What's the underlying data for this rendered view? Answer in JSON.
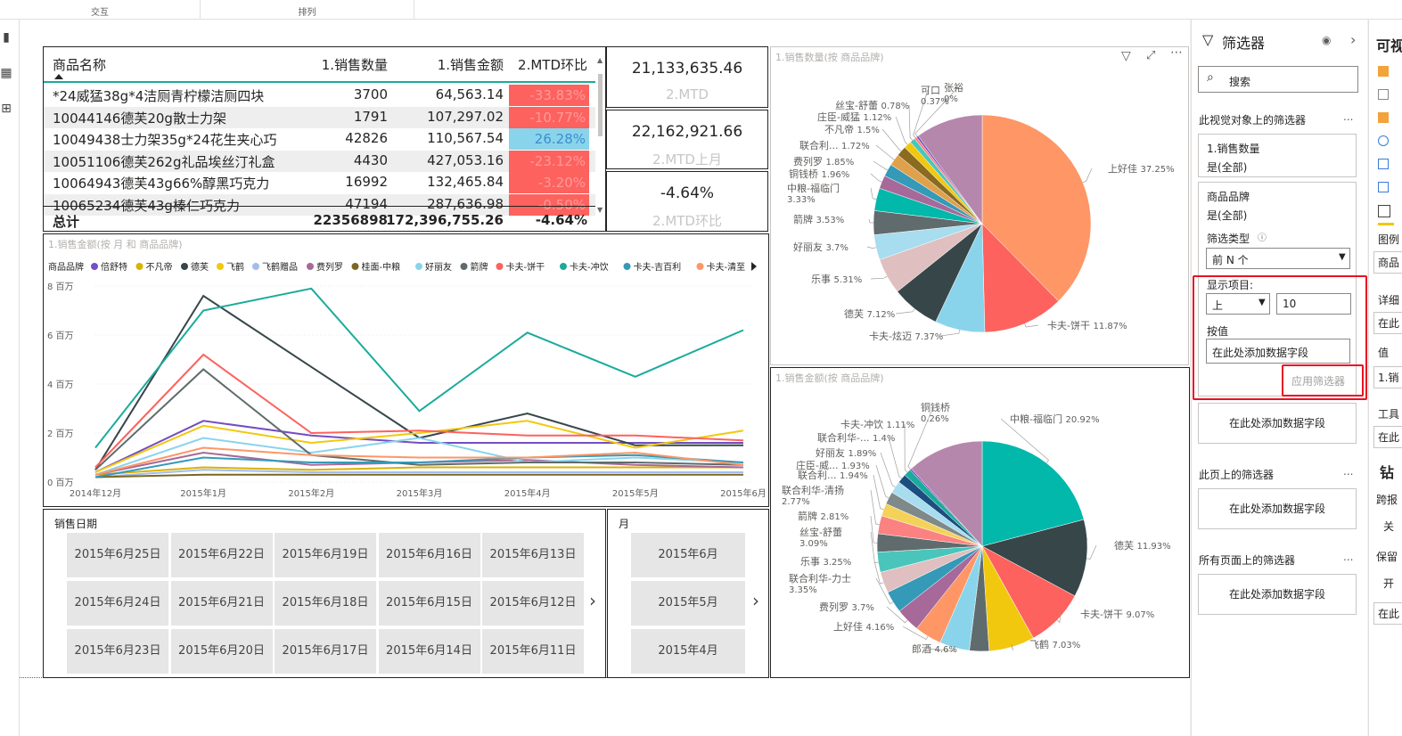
{
  "ribbon": {
    "groups": [
      "交互",
      "排列"
    ]
  },
  "table": {
    "headers": [
      "商品名称",
      "1.销售数量",
      "1.销售金额",
      "2.MTD环比"
    ],
    "rows": [
      {
        "name": "*24威猛38g*4洁厕青柠檬洁厕四块",
        "qty": "3700",
        "amount": "64,563.14",
        "mtd": "-33.83%",
        "pos": false
      },
      {
        "name": "10044146德芙20g散士力架",
        "qty": "1791",
        "amount": "107,297.02",
        "mtd": "-10.77%",
        "pos": false
      },
      {
        "name": "10049438士力架35g*24花生夹心巧",
        "qty": "42826",
        "amount": "110,567.54",
        "mtd": "26.28%",
        "pos": true
      },
      {
        "name": "10051106德芙262g礼品埃丝汀礼盒",
        "qty": "4430",
        "amount": "427,053.16",
        "mtd": "-23.12%",
        "pos": false
      },
      {
        "name": "10064943德芙43g66%醇黑巧克力",
        "qty": "16992",
        "amount": "132,465.84",
        "mtd": "-3.20%",
        "pos": false
      },
      {
        "name": "10065234德芙43g榛仁巧克力",
        "qty": "47194",
        "amount": "287,636.98",
        "mtd": "-0.50%",
        "pos": false
      }
    ],
    "total": {
      "label": "总计",
      "qty": "22356898",
      "amount": "172,396,755.26",
      "mtd": "-4.64%"
    }
  },
  "cards": [
    {
      "value": "21,133,635.46",
      "label": "2.MTD"
    },
    {
      "value": "22,162,921.66",
      "label": "2.MTD上月"
    },
    {
      "value": "-4.64%",
      "label": "2.MTD环比"
    }
  ],
  "colors": {
    "teal": "#1aab9b",
    "negative": "#fd625e",
    "positive": "#8ad4eb",
    "accent_red": "#e81123"
  },
  "chart_data": [
    {
      "type": "line",
      "title": "1.销售金额(按 月 和 商品品牌)",
      "legend_title": "商品品牌",
      "legend_position": "top",
      "x": [
        "2014年12月",
        "2015年1月",
        "2015年2月",
        "2015年3月",
        "2015年4月",
        "2015年5月",
        "2015年6月"
      ],
      "y_ticks": [
        "0 百万",
        "2 百万",
        "4 百万",
        "6 百万",
        "8 百万"
      ],
      "ylim": [
        0,
        8
      ],
      "series": [
        {
          "name": "倍舒特",
          "color": "#744ec2",
          "values": [
            0.4,
            2.5,
            1.9,
            1.6,
            1.6,
            1.6,
            1.6
          ]
        },
        {
          "name": "不凡帝",
          "color": "#d9b300",
          "values": [
            0.3,
            0.6,
            0.5,
            0.6,
            0.6,
            0.6,
            0.6
          ]
        },
        {
          "name": "德芙",
          "color": "#374649",
          "values": [
            0.5,
            7.6,
            4.7,
            1.8,
            2.8,
            1.5,
            1.5
          ]
        },
        {
          "name": "飞鹤",
          "color": "#f2c80f",
          "values": [
            0.4,
            2.3,
            1.6,
            2.0,
            2.5,
            1.4,
            2.1
          ]
        },
        {
          "name": "飞鹤赠品",
          "color": "#a3bcf0",
          "values": [
            0.2,
            0.5,
            0.4,
            0.4,
            0.4,
            0.4,
            0.4
          ]
        },
        {
          "name": "费列罗",
          "color": "#a66999",
          "values": [
            0.3,
            1.2,
            0.7,
            0.8,
            0.9,
            0.7,
            0.6
          ]
        },
        {
          "name": "桂面-中粮",
          "color": "#7a6820",
          "values": [
            0.2,
            0.3,
            0.3,
            0.3,
            0.3,
            0.3,
            0.3
          ]
        },
        {
          "name": "好丽友",
          "color": "#8ad4eb",
          "values": [
            0.3,
            1.8,
            1.2,
            1.8,
            0.8,
            1.0,
            0.8
          ]
        },
        {
          "name": "箭牌",
          "color": "#5f6b6d",
          "values": [
            0.5,
            4.6,
            1.1,
            0.7,
            0.8,
            0.8,
            0.7
          ]
        },
        {
          "name": "卡夫-饼干",
          "color": "#fd625e",
          "values": [
            0.6,
            5.2,
            2.0,
            2.1,
            1.9,
            1.9,
            1.7
          ]
        },
        {
          "name": "卡夫-冲饮",
          "color": "#1aab9b",
          "values": [
            1.4,
            7.0,
            7.9,
            2.9,
            6.1,
            4.3,
            6.2
          ]
        },
        {
          "name": "卡夫-吉百利",
          "color": "#3599b8",
          "values": [
            0.2,
            1.0,
            0.8,
            0.8,
            1.0,
            1.1,
            0.8
          ]
        },
        {
          "name": "卡夫-清至",
          "color": "#fe9666",
          "values": [
            0.3,
            1.4,
            1.1,
            1.0,
            1.0,
            1.2,
            0.7
          ]
        }
      ]
    },
    {
      "type": "pie",
      "title": "1.销售数量(按 商品品牌)",
      "slices": [
        {
          "label": "上好佳",
          "pct": "37.25%",
          "value": 37.25,
          "color": "#fe9666"
        },
        {
          "label": "卡夫-饼干",
          "pct": "11.87%",
          "value": 11.87,
          "color": "#fd625e"
        },
        {
          "label": "卡夫-炫迈",
          "pct": "7.37%",
          "value": 7.37,
          "color": "#8ad4eb"
        },
        {
          "label": "德芙",
          "pct": "7.12%",
          "value": 7.12,
          "color": "#374649"
        },
        {
          "label": "乐事",
          "pct": "5.31%",
          "value": 5.31,
          "color": "#dfbfbf"
        },
        {
          "label": "好丽友",
          "pct": "3.7%",
          "value": 3.7,
          "color": "#a8dcef"
        },
        {
          "label": "箭牌",
          "pct": "3.53%",
          "value": 3.53,
          "color": "#5f6b6d"
        },
        {
          "label": "中粮-福临门",
          "pct": "3.33%",
          "value": 3.33,
          "color": "#01b8aa"
        },
        {
          "label": "铜钱桥",
          "pct": "1.96%",
          "value": 1.96,
          "color": "#a66999"
        },
        {
          "label": "费列罗",
          "pct": "1.85%",
          "value": 1.85,
          "color": "#3599b8"
        },
        {
          "label": "联合利...",
          "pct": "1.72%",
          "value": 1.72,
          "color": "#dfa14b"
        },
        {
          "label": "不凡帝",
          "pct": "1.5%",
          "value": 1.5,
          "color": "#8a6b1f"
        },
        {
          "label": "庄臣-威猛",
          "pct": "1.12%",
          "value": 1.12,
          "color": "#f2c80f"
        },
        {
          "label": "丝宝-舒蕾",
          "pct": "0.78%",
          "value": 0.78,
          "color": "#4ac5bb"
        },
        {
          "label": "可口",
          "pct": "0.37%",
          "value": 0.37,
          "color": "#fb8281"
        },
        {
          "label": "张裕",
          "pct": "0%",
          "value": 0.3,
          "color": "#744ec2"
        },
        {
          "label": "",
          "pct": "",
          "value": 9.92,
          "color": "#b687ac"
        }
      ]
    },
    {
      "type": "pie",
      "title": "1.销售金额(按 商品品牌)",
      "slices": [
        {
          "label": "中粮-福临门",
          "pct": "20.92%",
          "value": 20.92,
          "color": "#01b8aa"
        },
        {
          "label": "德芙",
          "pct": "11.93%",
          "value": 11.93,
          "color": "#374649"
        },
        {
          "label": "卡夫-饼干",
          "pct": "9.07%",
          "value": 9.07,
          "color": "#fd625e"
        },
        {
          "label": "飞鹤",
          "pct": "7.03%",
          "value": 7.03,
          "color": "#f2c80f"
        },
        {
          "label": "",
          "pct": "",
          "value": 3.0,
          "color": "#5f6b6d"
        },
        {
          "label": "郎酒",
          "pct": "4.6%",
          "value": 4.6,
          "color": "#8ad4eb"
        },
        {
          "label": "上好佳",
          "pct": "4.16%",
          "value": 4.16,
          "color": "#fe9666"
        },
        {
          "label": "费列罗",
          "pct": "3.7%",
          "value": 3.7,
          "color": "#a66999"
        },
        {
          "label": "联合利华-力士",
          "pct": "3.35%",
          "value": 3.35,
          "color": "#3599b8"
        },
        {
          "label": "乐事",
          "pct": "3.25%",
          "value": 3.25,
          "color": "#dfbfbf"
        },
        {
          "label": "丝宝-舒蕾",
          "pct": "3.09%",
          "value": 3.09,
          "color": "#4ac5bb"
        },
        {
          "label": "箭牌",
          "pct": "2.81%",
          "value": 2.81,
          "color": "#5f6b6d"
        },
        {
          "label": "联合利华-清扬",
          "pct": "2.77%",
          "value": 2.77,
          "color": "#fb8281"
        },
        {
          "label": "联合利...",
          "pct": "1.94%",
          "value": 1.94,
          "color": "#f4d25a"
        },
        {
          "label": "庄臣-威...",
          "pct": "1.93%",
          "value": 1.93,
          "color": "#7f898a"
        },
        {
          "label": "好丽友",
          "pct": "1.89%",
          "value": 1.89,
          "color": "#a8dcef"
        },
        {
          "label": "联合利华-...",
          "pct": "1.4%",
          "value": 1.4,
          "color": "#1c4e80"
        },
        {
          "label": "卡夫-冲饮",
          "pct": "1.11%",
          "value": 1.11,
          "color": "#1aab9b"
        },
        {
          "label": "铜钱桥",
          "pct": "0.26%",
          "value": 0.26,
          "color": "#744ec2"
        },
        {
          "label": "",
          "pct": "",
          "value": 11.79,
          "color": "#b687ac"
        }
      ]
    }
  ],
  "slicer_date": {
    "title": "销售日期",
    "items": [
      "2015年6月25日",
      "2015年6月22日",
      "2015年6月19日",
      "2015年6月16日",
      "2015年6月13日",
      "2015年6月24日",
      "2015年6月21日",
      "2015年6月18日",
      "2015年6月15日",
      "2015年6月12日",
      "2015年6月23日",
      "2015年6月20日",
      "2015年6月17日",
      "2015年6月14日",
      "2015年6月11日"
    ]
  },
  "slicer_month": {
    "title": "月",
    "items": [
      "2015年6月",
      "2015年5月",
      "2015年4月"
    ]
  },
  "filters": {
    "title": "筛选器",
    "search_placeholder": "搜索",
    "section_visual": "此视觉对象上的筛选器",
    "f1_name": "1.销售数量",
    "f1_value": "是(全部)",
    "f2_name": "商品品牌",
    "f2_value": "是(全部)",
    "filter_type_label": "筛选类型",
    "filter_type_value": "前 N 个",
    "show_items_label": "显示项目:",
    "direction": "上",
    "count": "10",
    "by_value_label": "按值",
    "add_field": "在此处添加数据字段",
    "apply": "应用筛选器",
    "section_page": "此页上的筛选器",
    "section_all": "所有页面上的筛选器",
    "more": "..."
  },
  "viz_pane": {
    "title": "可视",
    "labels": [
      "图例",
      "商品",
      "详细",
      "在此",
      "值",
      "1.销",
      "工具",
      "在此",
      "钻",
      "跨报",
      "关",
      "保留",
      "开",
      "在此"
    ]
  }
}
